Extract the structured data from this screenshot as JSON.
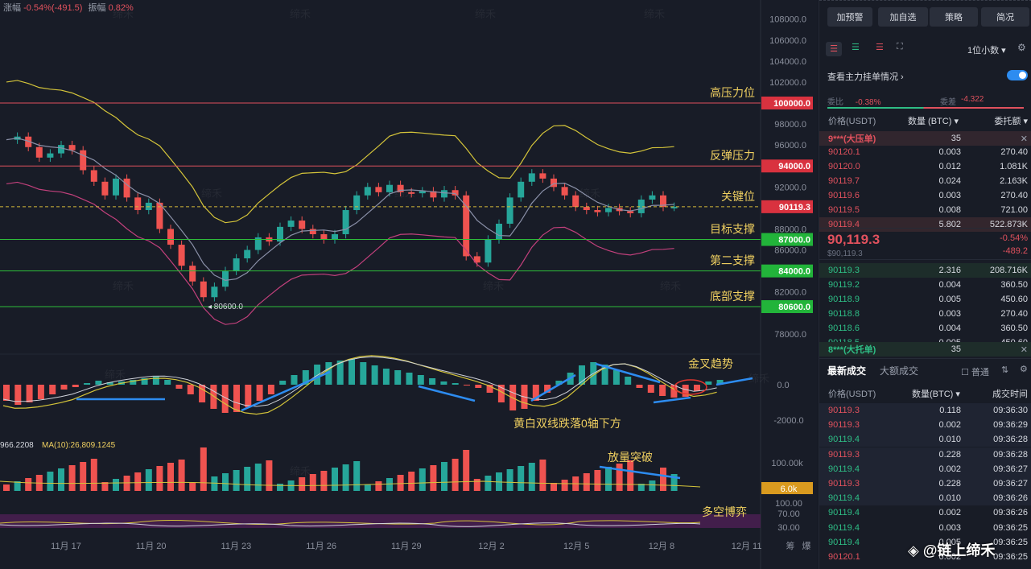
{
  "header": {
    "change_label": "涨幅",
    "change_value": "-0.54%(-491.5)",
    "amp_label": "振幅",
    "amp_value": "0.82%"
  },
  "price_axis": [
    "108000.0",
    "106000.0",
    "104000.0",
    "102000.0",
    "98000.0",
    "96000.0",
    "92000.0",
    "88000.0",
    "86000.0",
    "82000.0",
    "78000.0"
  ],
  "levels": [
    {
      "price": "100000.0",
      "label": "高压力位",
      "color": "#e0515d"
    },
    {
      "price": "94000.0",
      "label": "反弹压力",
      "color": "#e0515d"
    },
    {
      "price": "90119.3",
      "label": "关键位",
      "color": "#e0515d"
    },
    {
      "price": "87000.0",
      "label": "目标支撑",
      "color": "#2ebd3a"
    },
    {
      "price": "84000.0",
      "label": "第二支撑",
      "color": "#2ebd3a"
    },
    {
      "price": "80600.0",
      "label": "底部支撑",
      "color": "#2ebd3a"
    }
  ],
  "low_marker": "80600.0",
  "macd": {
    "zero": "0.0",
    "min": "-2000.0",
    "golden_label": "金叉趋势",
    "cross_label": "黄白双线跌落0轴下方"
  },
  "volume": {
    "left_label": "966.2208",
    "ma_label": "MA(10):26,809.1245",
    "axis_top": "100.00k",
    "current": "6.0k",
    "breakout_label": "放量突破"
  },
  "rsi": {
    "axis": [
      "100.00",
      "70.00",
      "30.00"
    ],
    "label": "多空博弈"
  },
  "dates": [
    "11月 17",
    "11月 20",
    "11月 23",
    "11月 26",
    "11月 29",
    "12月 2",
    "12月 5",
    "12月 8",
    "12月 11"
  ],
  "bottom_right": [
    "筹",
    "爆"
  ],
  "watermark": "缔禾",
  "sidebar": {
    "buttons": [
      "加预警",
      "加自选",
      "策略",
      "简况"
    ],
    "decimal": "1位小数",
    "depth_label": "查看主力挂单情况",
    "ratio_label": "委比",
    "ratio_value": "-0.38%",
    "diff_label": "委差",
    "diff_value": "-4.322",
    "book_headers": [
      "价格(USDT)",
      "数量 (BTC)",
      "委托额"
    ],
    "ask_banner": {
      "name": "9***(大压单)",
      "qty": "35"
    },
    "asks": [
      [
        "90120.1",
        "0.003",
        "270.40"
      ],
      [
        "90120.0",
        "0.012",
        "1.081K"
      ],
      [
        "90119.7",
        "0.024",
        "2.163K"
      ],
      [
        "90119.6",
        "0.003",
        "270.40"
      ],
      [
        "90119.5",
        "0.008",
        "721.00"
      ],
      [
        "90119.4",
        "5.802",
        "522.873K"
      ]
    ],
    "last_price": "90,119.3",
    "last_change": "-0.54%",
    "last_usd": "$90,119.3",
    "last_diff": "-489.2",
    "bids": [
      [
        "90119.3",
        "2.316",
        "208.716K"
      ],
      [
        "90119.2",
        "0.004",
        "360.50"
      ],
      [
        "90118.9",
        "0.005",
        "450.60"
      ],
      [
        "90118.8",
        "0.003",
        "270.40"
      ],
      [
        "90118.6",
        "0.004",
        "360.50"
      ],
      [
        "90118.5",
        "0.005",
        "450.60"
      ]
    ],
    "bid_banner": {
      "name": "8***(大托单)",
      "qty": "35"
    },
    "trades_tabs": [
      "最新成交",
      "大额成交"
    ],
    "normal_label": "普通",
    "trade_headers": [
      "价格(USDT)",
      "数量(BTC)",
      "成交时间"
    ],
    "trades": [
      [
        "90119.3",
        "0.118",
        "09:36:30",
        "red"
      ],
      [
        "90119.3",
        "0.002",
        "09:36:29",
        "red"
      ],
      [
        "90119.4",
        "0.010",
        "09:36:28",
        "grn"
      ],
      [
        "90119.3",
        "0.228",
        "09:36:28",
        "red"
      ],
      [
        "90119.4",
        "0.002",
        "09:36:27",
        "grn"
      ],
      [
        "90119.3",
        "0.228",
        "09:36:27",
        "red"
      ],
      [
        "90119.4",
        "0.010",
        "09:36:26",
        "grn"
      ],
      [
        "90119.4",
        "0.002",
        "09:36:26",
        "grn"
      ],
      [
        "90119.4",
        "0.003",
        "09:36:25",
        "grn"
      ],
      [
        "90119.4",
        "0.005",
        "09:36:25",
        "grn"
      ],
      [
        "90120.1",
        "0.002",
        "09:36:25",
        "red"
      ]
    ],
    "brand": "@链上缔禾"
  }
}
